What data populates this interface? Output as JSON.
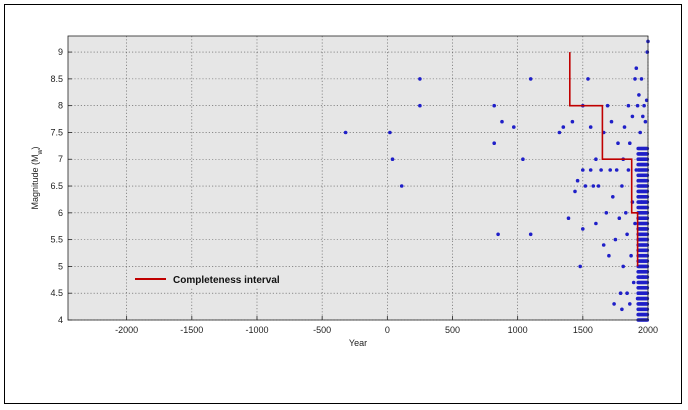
{
  "chart_data": {
    "type": "scatter",
    "xlabel": "Year",
    "ylabel": "Magnitude (M",
    "ylabel_sub": "w",
    "ylabel_suffix": ")",
    "xlim": [
      -2450,
      2000
    ],
    "ylim": [
      4,
      9.3
    ],
    "xticks": [
      -2000,
      -1500,
      -1000,
      -500,
      0,
      500,
      1000,
      1500,
      2000
    ],
    "yticks": [
      4,
      4.5,
      5,
      5.5,
      6,
      6.5,
      7,
      7.5,
      8,
      8.5,
      9
    ],
    "grid": true,
    "background": "#e6e6e6",
    "point_color": "#1f1fc8",
    "line_color": "#c00000",
    "legend": {
      "position": "lower-left",
      "entries": [
        "Completeness interval"
      ]
    },
    "series": [
      {
        "name": "Completeness interval",
        "kind": "step-line",
        "x": [
          1400,
          1400,
          1650,
          1650,
          1875,
          1875,
          1920,
          1920
        ],
        "y": [
          9,
          8,
          8,
          7,
          7,
          6,
          6,
          5
        ]
      },
      {
        "kind": "scatter",
        "points": [
          [
            -320,
            7.5
          ],
          [
            20,
            7.5
          ],
          [
            40,
            7.0
          ],
          [
            110,
            6.5
          ],
          [
            250,
            8.5
          ],
          [
            250,
            8.0
          ],
          [
            820,
            8.0
          ],
          [
            820,
            7.3
          ],
          [
            850,
            5.6
          ],
          [
            880,
            7.7
          ],
          [
            970,
            7.6
          ],
          [
            1040,
            7.0
          ],
          [
            1100,
            8.5
          ],
          [
            1100,
            5.6
          ],
          [
            1320,
            7.5
          ],
          [
            1350,
            7.6
          ],
          [
            1390,
            5.9
          ],
          [
            1420,
            7.7
          ],
          [
            1440,
            6.4
          ],
          [
            1460,
            6.6
          ],
          [
            1480,
            5.0
          ],
          [
            1500,
            8.0
          ],
          [
            1500,
            5.7
          ],
          [
            1500,
            6.8
          ],
          [
            1520,
            6.5
          ],
          [
            1540,
            8.5
          ],
          [
            1560,
            7.6
          ],
          [
            1560,
            6.8
          ],
          [
            1580,
            6.5
          ],
          [
            1600,
            7.0
          ],
          [
            1600,
            5.8
          ],
          [
            1620,
            6.5
          ],
          [
            1640,
            6.8
          ],
          [
            1660,
            5.4
          ],
          [
            1660,
            7.5
          ],
          [
            1680,
            6.0
          ],
          [
            1690,
            8.0
          ],
          [
            1700,
            5.2
          ],
          [
            1710,
            6.8
          ],
          [
            1720,
            7.7
          ],
          [
            1730,
            6.3
          ],
          [
            1740,
            4.3
          ],
          [
            1750,
            5.5
          ],
          [
            1760,
            6.8
          ],
          [
            1770,
            7.3
          ],
          [
            1780,
            5.9
          ],
          [
            1790,
            4.5
          ],
          [
            1800,
            4.2
          ],
          [
            1800,
            6.5
          ],
          [
            1810,
            7.0
          ],
          [
            1810,
            5.0
          ],
          [
            1820,
            7.6
          ],
          [
            1830,
            6.0
          ],
          [
            1840,
            4.5
          ],
          [
            1840,
            5.6
          ],
          [
            1850,
            6.8
          ],
          [
            1850,
            8.0
          ],
          [
            1860,
            4.3
          ],
          [
            1860,
            7.3
          ],
          [
            1870,
            5.2
          ],
          [
            1880,
            7.8
          ],
          [
            1880,
            6.2
          ],
          [
            1890,
            4.7
          ],
          [
            1900,
            8.5
          ],
          [
            1900,
            5.8
          ],
          [
            1910,
            8.7
          ],
          [
            1910,
            6.8
          ],
          [
            1920,
            8.0
          ],
          [
            1920,
            4.4
          ],
          [
            1930,
            8.2
          ],
          [
            1940,
            7.5
          ],
          [
            1940,
            5.6
          ],
          [
            1950,
            8.5
          ],
          [
            1950,
            6.2
          ],
          [
            1960,
            7.8
          ],
          [
            1960,
            4.8
          ],
          [
            1970,
            8.0
          ],
          [
            1970,
            6.6
          ],
          [
            1980,
            7.7
          ],
          [
            1985,
            5.3
          ],
          [
            1990,
            8.1
          ],
          [
            1995,
            9.0
          ],
          [
            2000,
            9.2
          ]
        ]
      }
    ],
    "dense_band": {
      "x_from": 1925,
      "x_to": 2000,
      "y_from": 4.0,
      "y_to": 7.2
    }
  }
}
